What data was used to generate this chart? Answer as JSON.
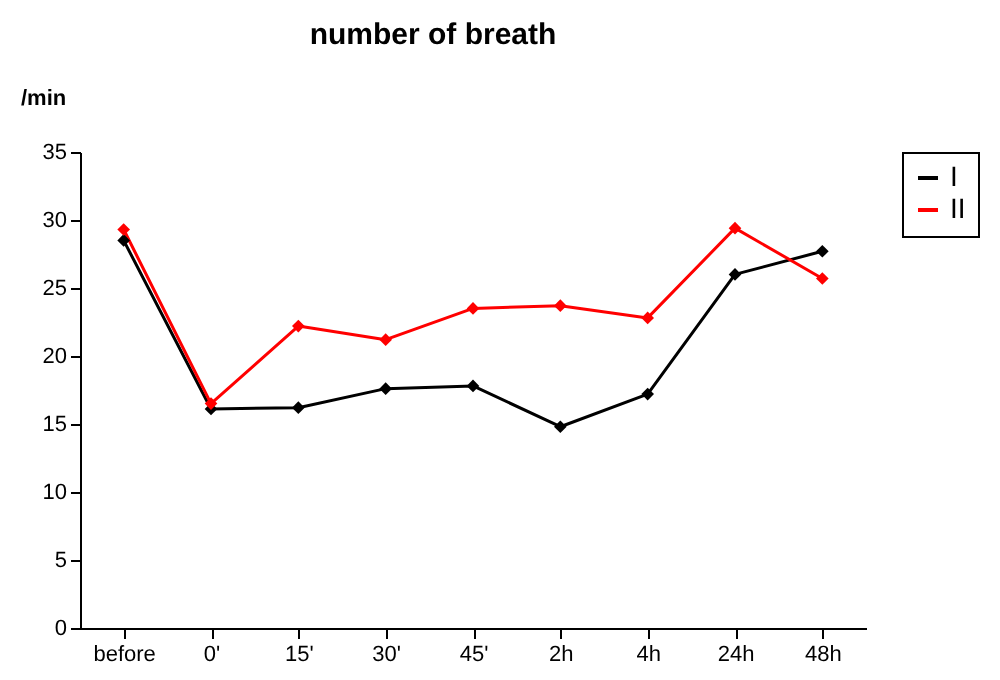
{
  "chart_data": {
    "type": "line",
    "title": "number of breath",
    "ylabel": "/min",
    "categories": [
      "before",
      "0'",
      "15'",
      "30'",
      "45'",
      "2h",
      "4h",
      "24h",
      "48h"
    ],
    "series": [
      {
        "name": "I",
        "color": "#000000",
        "values": [
          28.5,
          16.1,
          16.2,
          17.6,
          17.8,
          14.8,
          17.2,
          26.0,
          27.7
        ]
      },
      {
        "name": "II",
        "color": "#ff0000",
        "values": [
          29.3,
          16.5,
          22.2,
          21.2,
          23.5,
          23.7,
          22.8,
          29.4,
          25.7
        ]
      }
    ],
    "ylim": [
      0,
      35
    ],
    "yticks": [
      0,
      5,
      10,
      15,
      20,
      25,
      30,
      35
    ],
    "grid": false,
    "legend": "right",
    "marker": "diamond",
    "line_style": "solid"
  }
}
